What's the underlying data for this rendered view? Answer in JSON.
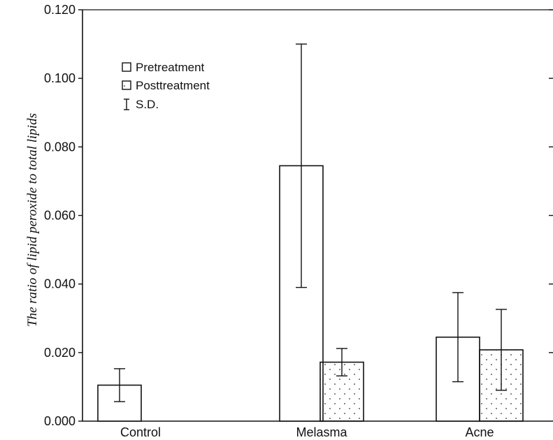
{
  "chart_data": {
    "type": "bar",
    "title": "",
    "xlabel": "",
    "ylabel": "The ratio of lipid peroxide to total lipids",
    "ylim": [
      0,
      0.12
    ],
    "yticks": [
      "0.000",
      "0.020",
      "0.040",
      "0.060",
      "0.080",
      "0.100",
      "0.120"
    ],
    "categories": [
      "Control",
      "Melasma",
      "Acne"
    ],
    "series": [
      {
        "name": "Pretreatment",
        "pattern": "open",
        "values": [
          0.0105,
          0.0745,
          0.0245
        ],
        "sd": [
          0.0048,
          0.0355,
          0.013
        ]
      },
      {
        "name": "Posttreatment",
        "pattern": "dotted",
        "values": [
          null,
          0.0172,
          0.0208
        ],
        "sd": [
          null,
          0.004,
          0.0118
        ]
      }
    ],
    "legend": {
      "position": "top-left",
      "entries": [
        "Pretreatment",
        "Posttreatment",
        "S.D."
      ]
    },
    "grid": false
  }
}
